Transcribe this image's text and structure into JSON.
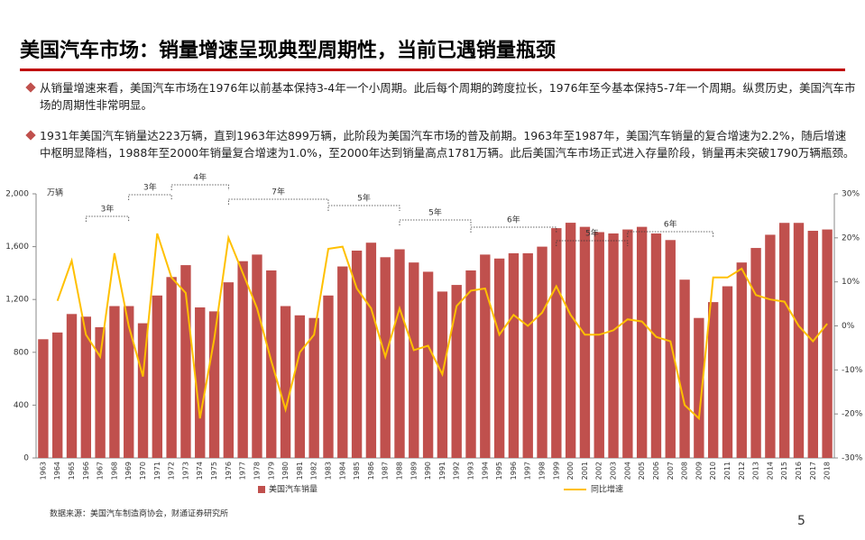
{
  "header": {
    "title": "美国汽车市场：销量增速呈现典型周期性，当前已遇销量瓶颈"
  },
  "bullets": [
    "从销量增速来看，美国汽车市场在1976年以前基本保持3-4年一个小周期。此后每个周期的跨度拉长，1976年至今基本保持5-7年一个周期。纵贯历史，美国汽车市场的周期性非常明显。",
    "1931年美国汽车销量达223万辆，直到1963年达899万辆，此阶段为美国汽车市场的普及前期。1963年至1987年，美国汽车销量的复合增速为2.2%，随后增速中枢明显降档，1988年至2000年销量复合增速为1.0%，至2000年达到销量高点1781万辆。此后美国汽车市场正式进入存量阶段，销量再未突破1790万辆瓶颈。"
  ],
  "chart_data": {
    "type": "bar-line",
    "y_unit": "万辆",
    "categories": [
      "1963",
      "1964",
      "1965",
      "1966",
      "1967",
      "1968",
      "1969",
      "1970",
      "1971",
      "1972",
      "1973",
      "1974",
      "1975",
      "1976",
      "1977",
      "1978",
      "1979",
      "1980",
      "1981",
      "1982",
      "1983",
      "1984",
      "1985",
      "1986",
      "1987",
      "1988",
      "1989",
      "1990",
      "1991",
      "1992",
      "1993",
      "1994",
      "1995",
      "1996",
      "1997",
      "1998",
      "1999",
      "2000",
      "2001",
      "2002",
      "2003",
      "2004",
      "2005",
      "2006",
      "2007",
      "2008",
      "2009",
      "2010",
      "2011",
      "2012",
      "2013",
      "2014",
      "2015",
      "2016",
      "2017",
      "2018"
    ],
    "series": [
      {
        "name": "美国汽车销量",
        "color": "#c0504d",
        "values": [
          899,
          950,
          1090,
          1070,
          990,
          1150,
          1150,
          1020,
          1230,
          1370,
          1460,
          1140,
          1110,
          1330,
          1490,
          1540,
          1420,
          1150,
          1080,
          1060,
          1230,
          1450,
          1570,
          1630,
          1520,
          1580,
          1480,
          1410,
          1260,
          1310,
          1420,
          1540,
          1510,
          1550,
          1550,
          1600,
          1740,
          1781,
          1750,
          1710,
          1700,
          1730,
          1750,
          1700,
          1650,
          1350,
          1060,
          1180,
          1300,
          1480,
          1590,
          1690,
          1780,
          1780,
          1720,
          1730
        ]
      },
      {
        "name": "同比增速",
        "color": "#ffc000",
        "axis": "y2",
        "values": [
          null,
          5.7,
          14.8,
          -2,
          -7,
          16.5,
          0,
          -11.5,
          21,
          11,
          7.5,
          -21,
          -3,
          20,
          12,
          4,
          -8,
          -19,
          -6,
          -2,
          17.5,
          18,
          8.5,
          4,
          -7,
          4,
          -5.5,
          -4.5,
          -11,
          4.5,
          8,
          8.5,
          -2,
          2.5,
          0,
          3,
          9,
          2.5,
          -2,
          -2,
          -1,
          1.5,
          1,
          -2.5,
          -3.5,
          -18,
          -21,
          11,
          11,
          13,
          7,
          6,
          5.5,
          0,
          -3.5,
          0.5
        ]
      }
    ],
    "ylim": [
      0,
      2000
    ],
    "yticks": [
      0,
      400,
      800,
      {
        "value": 1200,
        "label": "1,200"
      },
      {
        "value": 1600,
        "label": "1,600"
      },
      {
        "value": 2000,
        "label": "2,000"
      }
    ],
    "y2lim": [
      -30,
      30
    ],
    "y2ticks": [
      {
        "value": -30,
        "label": "-30%"
      },
      {
        "value": -20,
        "label": "-20%"
      },
      {
        "value": -10,
        "label": "-10%"
      },
      {
        "value": 0,
        "label": "0%"
      },
      {
        "value": 10,
        "label": "10%"
      },
      {
        "value": 20,
        "label": "20%"
      },
      {
        "value": 30,
        "label": "30%"
      }
    ],
    "annotations": [
      "3年",
      "3年",
      "4年",
      "7年",
      "5年",
      "5年",
      "6年",
      "5年",
      "6年"
    ]
  },
  "footer": {
    "source": "数据来源：美国汽车制造商协会，财通证券研究所",
    "page": "5"
  }
}
